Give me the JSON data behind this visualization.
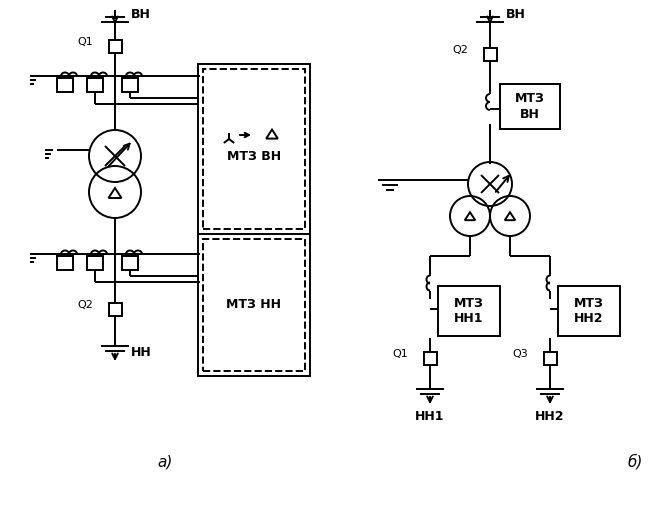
{
  "bg_color": "#ffffff",
  "lw": 1.4,
  "label_a": "а)",
  "label_b": "б)",
  "label_VN_a": "ВН",
  "label_NN_a": "НН",
  "label_Q1_a": "Q1",
  "label_Q2_a": "Q2",
  "label_VN_b": "ВН",
  "label_Q2_b": "Q2",
  "label_Q1_b": "Q1",
  "label_Q3_b": "Q3",
  "label_HH1_b": "НН1",
  "label_HH2_b": "НН2",
  "title_a_VN": "МТЗ ВН",
  "title_a_NN": "МТЗ НН",
  "title_b_VN": "МТЗ\nВН",
  "title_b_NN1": "МТЗ\nНН1",
  "title_b_NN2": "МТЗ\nНН2"
}
